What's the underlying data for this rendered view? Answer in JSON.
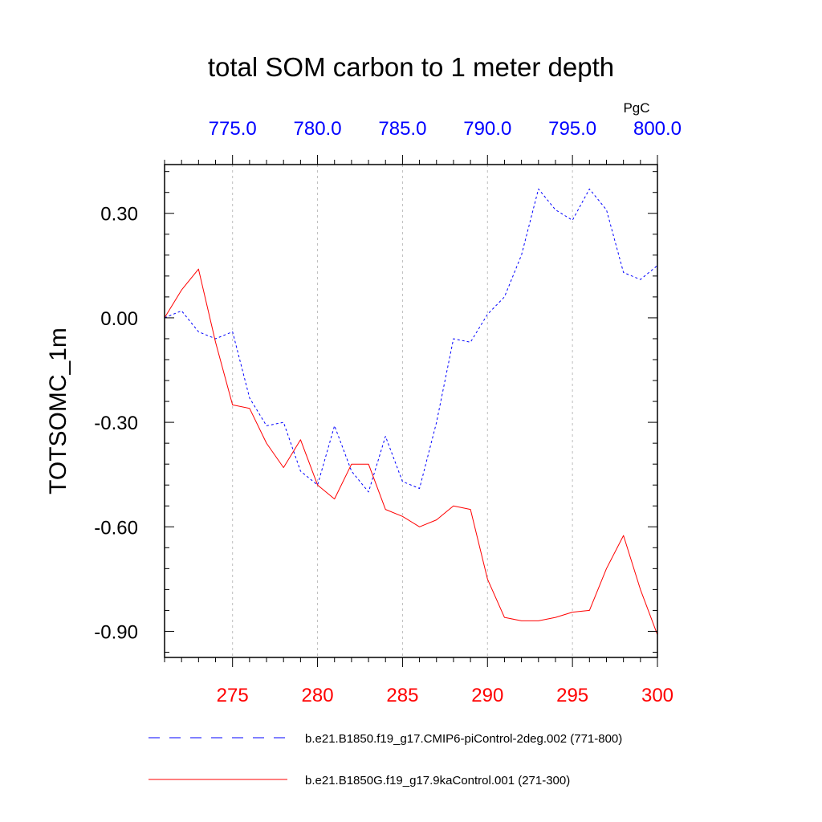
{
  "chart_data": {
    "type": "line",
    "title": "total SOM carbon to 1 meter depth",
    "ylabel": "TOTSOMC_1m",
    "top_axis_unit": "PgC",
    "ylim": [
      -0.975,
      0.44
    ],
    "yticks": [
      0.3,
      0.0,
      -0.3,
      -0.6,
      -0.9
    ],
    "ytick_labels": [
      "0.30",
      "0.00",
      "-0.30",
      "-0.60",
      "-0.90"
    ],
    "bottom_axis": {
      "range": [
        271,
        300
      ],
      "ticks": [
        275,
        280,
        285,
        290,
        295,
        300
      ],
      "tick_labels": [
        "275",
        "280",
        "285",
        "290",
        "295",
        "300"
      ],
      "color": "#ff0000"
    },
    "top_axis": {
      "range": [
        771,
        800
      ],
      "ticks": [
        775,
        780,
        785,
        790,
        795,
        800
      ],
      "tick_labels": [
        "775.0",
        "780.0",
        "785.0",
        "790.0",
        "795.0",
        "800.0"
      ],
      "color": "#0000ff"
    },
    "grid": "vertical dashed",
    "legend_position": "bottom",
    "series": [
      {
        "name": "b.e21.B1850.f19_g17.CMIP6-piControl-2deg.002 (771-800)",
        "axis": "top",
        "color": "#0000ff",
        "style": "dashed",
        "x": [
          771,
          772,
          773,
          774,
          775,
          776,
          777,
          778,
          779,
          780,
          781,
          782,
          783,
          784,
          785,
          786,
          787,
          788,
          789,
          790,
          791,
          792,
          793,
          794,
          795,
          796,
          797,
          798,
          799,
          800
        ],
        "values": [
          0.0,
          0.02,
          -0.04,
          -0.06,
          -0.04,
          -0.23,
          -0.31,
          -0.3,
          -0.44,
          -0.48,
          -0.31,
          -0.44,
          -0.5,
          -0.34,
          -0.47,
          -0.49,
          -0.3,
          -0.06,
          -0.07,
          0.01,
          0.06,
          0.18,
          0.37,
          0.31,
          0.28,
          0.37,
          0.31,
          0.13,
          0.11,
          0.15
        ]
      },
      {
        "name": "b.e21.B1850G.f19_g17.9kaControl.001 (271-300)",
        "axis": "bottom",
        "color": "#ff0000",
        "style": "solid",
        "x": [
          271,
          272,
          273,
          274,
          275,
          276,
          277,
          278,
          279,
          280,
          281,
          282,
          283,
          284,
          285,
          286,
          287,
          288,
          289,
          290,
          291,
          292,
          293,
          294,
          295,
          296,
          297,
          298,
          299,
          300
        ],
        "values": [
          0.0,
          0.08,
          0.14,
          -0.07,
          -0.25,
          -0.26,
          -0.36,
          -0.43,
          -0.35,
          -0.48,
          -0.52,
          -0.42,
          -0.42,
          -0.55,
          -0.57,
          -0.6,
          -0.58,
          -0.54,
          -0.55,
          -0.75,
          -0.86,
          -0.87,
          -0.87,
          -0.86,
          -0.845,
          -0.84,
          -0.72,
          -0.625,
          -0.78,
          -0.91
        ]
      }
    ]
  }
}
